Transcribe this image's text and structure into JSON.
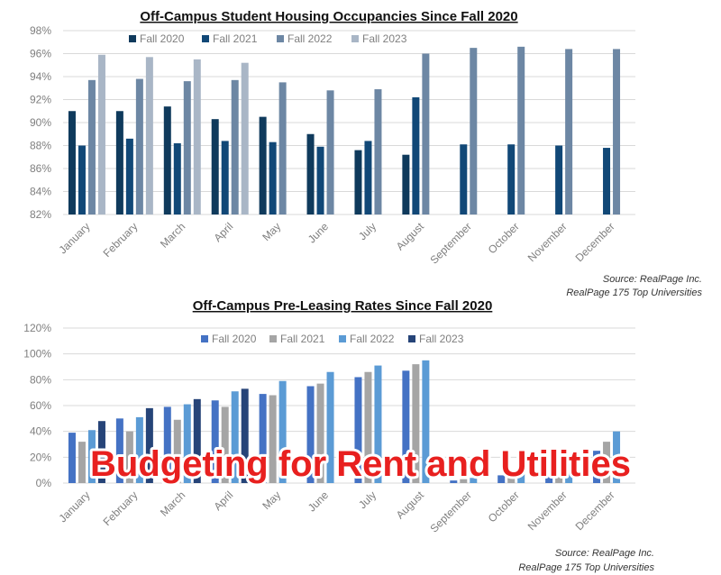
{
  "overlay_text": "Budgeting for Rent and Utilities",
  "chart_data": [
    {
      "type": "bar",
      "title": "Off-Campus Student Housing Occupancies Since Fall 2020",
      "categories": [
        "January",
        "February",
        "March",
        "April",
        "May",
        "June",
        "July",
        "August",
        "September",
        "October",
        "November",
        "December"
      ],
      "ylim": [
        82,
        98
      ],
      "yticks": [
        82,
        84,
        86,
        88,
        90,
        92,
        94,
        96,
        98
      ],
      "y_tick_suffix": "%",
      "grid": true,
      "legend_position": "top",
      "series": [
        {
          "name": "Fall 2020",
          "color": "#0f3a5c",
          "values": [
            91.0,
            91.0,
            91.4,
            90.3,
            90.5,
            89.0,
            87.6,
            87.2,
            null,
            null,
            null,
            null
          ]
        },
        {
          "name": "Fall 2021",
          "color": "#114877",
          "values": [
            88.0,
            88.6,
            88.2,
            88.4,
            88.3,
            87.9,
            88.4,
            92.2,
            88.1,
            88.1,
            88.0,
            87.8
          ]
        },
        {
          "name": "Fall 2022",
          "color": "#6d87a4",
          "values": [
            93.7,
            93.8,
            93.6,
            93.7,
            93.5,
            92.8,
            92.9,
            96.0,
            96.5,
            96.6,
            96.4,
            96.4
          ]
        },
        {
          "name": "Fall 2023",
          "color": "#a9b6c6",
          "values": [
            95.9,
            95.7,
            95.5,
            95.2,
            null,
            null,
            null,
            null,
            null,
            null,
            null,
            null
          ]
        }
      ],
      "source": [
        "Source: RealPage Inc.",
        "RealPage 175 Top Universities"
      ]
    },
    {
      "type": "bar",
      "title": "Off-Campus Pre-Leasing Rates Since Fall 2020",
      "categories": [
        "January",
        "February",
        "March",
        "April",
        "May",
        "June",
        "July",
        "August",
        "September",
        "October",
        "November",
        "December"
      ],
      "ylim": [
        0,
        120
      ],
      "yticks": [
        0,
        20,
        40,
        60,
        80,
        100,
        120
      ],
      "y_tick_suffix": "%",
      "grid": true,
      "legend_position": "top",
      "series": [
        {
          "name": "Fall 2020",
          "color": "#4472c4",
          "values": [
            39,
            50,
            59,
            64,
            69,
            75,
            82,
            87,
            2,
            6,
            14,
            25
          ]
        },
        {
          "name": "Fall 2021",
          "color": "#a5a5a5",
          "values": [
            32,
            40,
            49,
            59,
            68,
            77,
            86,
            92,
            3,
            6,
            15,
            32
          ]
        },
        {
          "name": "Fall 2022",
          "color": "#5b9bd5",
          "values": [
            41,
            51,
            61,
            71,
            79,
            86,
            91,
            95,
            4,
            7,
            15,
            40
          ]
        },
        {
          "name": "Fall 2023",
          "color": "#264478",
          "values": [
            48,
            58,
            65,
            73,
            null,
            null,
            null,
            null,
            null,
            null,
            null,
            null
          ]
        }
      ],
      "source": [
        "Source: RealPage Inc.",
        "RealPage 175 Top Universities"
      ]
    }
  ]
}
